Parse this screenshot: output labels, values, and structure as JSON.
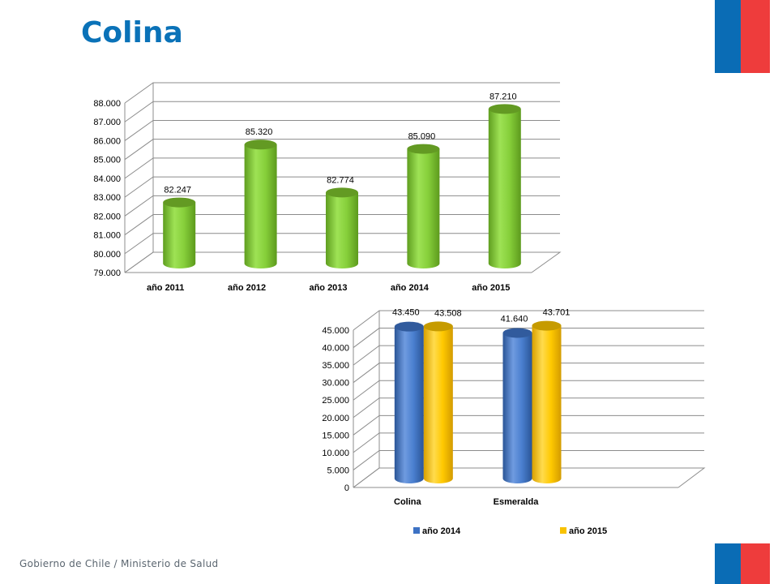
{
  "page": {
    "title": "Colina",
    "footer": "Gobierno de Chile / Ministerio de Salud"
  },
  "colors": {
    "title": "#0a72b8",
    "flag_blue": "#0a6cb5",
    "flag_red": "#ee3c3c"
  },
  "chart_data": [
    {
      "type": "bar",
      "style": "3d-cylinder",
      "categories": [
        "año 2011",
        "año 2012",
        "año 2013",
        "año 2014",
        "año 2015"
      ],
      "values": [
        82247,
        85320,
        82774,
        85090,
        87210
      ],
      "value_labels": [
        "82.247",
        "85.320",
        "82.774",
        "85.090",
        "87.210"
      ],
      "ylim": [
        79000,
        88000
      ],
      "yticks": [
        79000,
        80000,
        81000,
        82000,
        83000,
        84000,
        85000,
        86000,
        87000,
        88000
      ],
      "ytick_labels": [
        "79.000",
        "80.000",
        "81.000",
        "82.000",
        "83.000",
        "84.000",
        "85.000",
        "86.000",
        "87.000",
        "88.000"
      ],
      "grid": true,
      "legend": "none",
      "color": "#7cc02c"
    },
    {
      "type": "bar",
      "style": "3d-cylinder",
      "categories": [
        "Colina",
        "Esmeralda"
      ],
      "series": [
        {
          "name": "año 2014",
          "values": [
            43450,
            41640
          ],
          "value_labels": [
            "43.450",
            "41.640"
          ],
          "color": "#3d72c4"
        },
        {
          "name": "año 2015",
          "values": [
            43508,
            43701
          ],
          "value_labels": [
            "43.508",
            "43.701"
          ],
          "color": "#f8c200"
        }
      ],
      "ylim": [
        0,
        45000
      ],
      "yticks": [
        0,
        5000,
        10000,
        15000,
        20000,
        25000,
        30000,
        35000,
        40000,
        45000
      ],
      "ytick_labels": [
        "0",
        "5.000",
        "10.000",
        "15.000",
        "20.000",
        "25.000",
        "30.000",
        "35.000",
        "40.000",
        "45.000"
      ],
      "grid": true,
      "legend": "bottom"
    }
  ]
}
